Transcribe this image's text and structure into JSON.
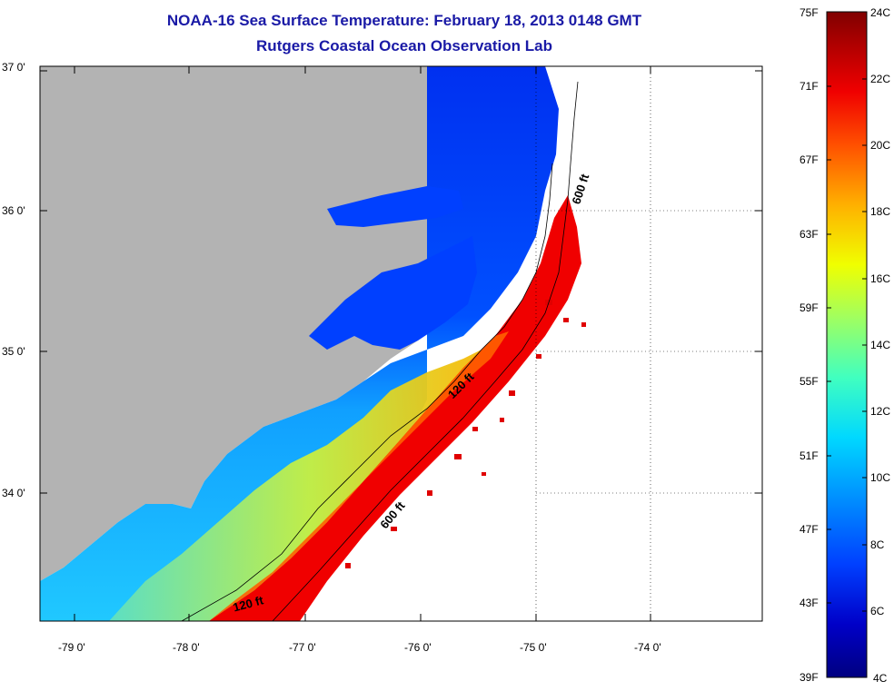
{
  "title": {
    "line1": "NOAA-16 Sea Surface Temperature:  February 18, 2013 0148 GMT",
    "line2": "Rutgers Coastal Ocean Observation Lab"
  },
  "lat_labels": [
    "37 0'",
    "36 0'",
    "35 0'",
    "34 0'"
  ],
  "lon_labels": [
    "-79 0'",
    "-78 0'",
    "-77 0'",
    "-76 0'",
    "-75 0'",
    "-74 0'"
  ],
  "contour_labels": {
    "c600_north": "600 ft",
    "c120_mid": "120 ft",
    "c600_south": "600 ft",
    "c120_south": "120 ft"
  },
  "colorbar": {
    "fahrenheit": [
      "75F",
      "71F",
      "67F",
      "63F",
      "59F",
      "55F",
      "51F",
      "47F",
      "43F",
      "39F"
    ],
    "celsius": [
      "24C",
      "22C",
      "20C",
      "18C",
      "16C",
      "14C",
      "12C",
      "10C",
      "8C",
      "6C",
      "4C"
    ],
    "colors": [
      "#000080",
      "#0000c8",
      "#0040ff",
      "#0090ff",
      "#00d8ff",
      "#40ffc0",
      "#a0ff60",
      "#f0ff00",
      "#ffb000",
      "#ff5000",
      "#f00000",
      "#b00000",
      "#800000"
    ]
  },
  "colors": {
    "land": "#b3b3b3",
    "title": "#1a1aa6"
  }
}
